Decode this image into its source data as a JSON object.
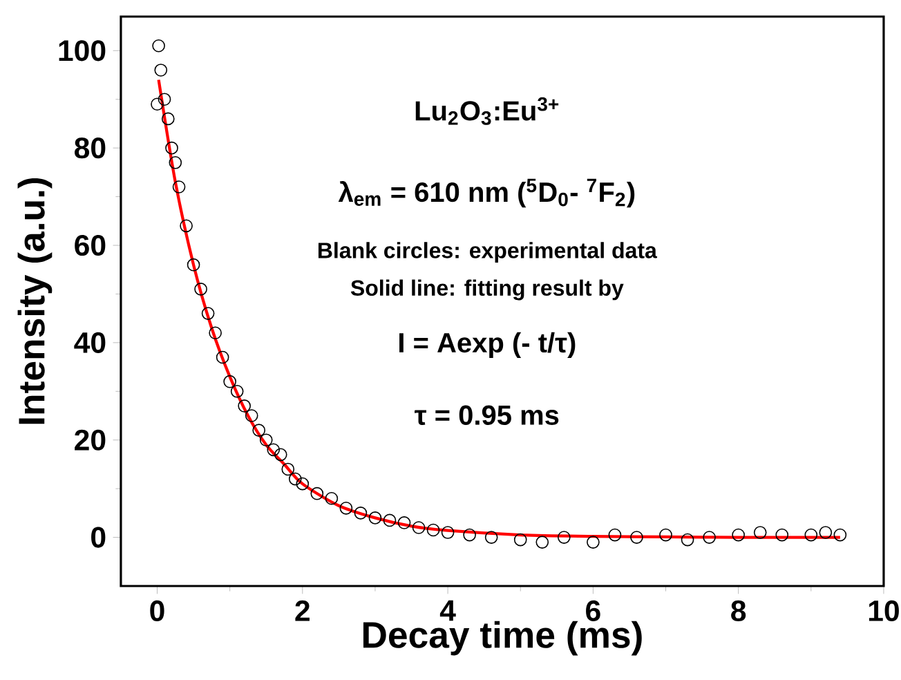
{
  "chart_data": {
    "type": "scatter",
    "xlabel": "Decay time (ms)",
    "ylabel": "Intensity (a.u.)",
    "xlim": [
      -0.5,
      10
    ],
    "ylim": [
      -10,
      107
    ],
    "xticks": [
      0,
      2,
      4,
      6,
      8,
      10
    ],
    "yticks": [
      0,
      20,
      40,
      60,
      80,
      100
    ],
    "annotations": [
      "Lu$_{2}$O$_{3}$:Eu$^{3+}$",
      "λ$_{em}$ = 610 nm ($^{5}$D$_{0}$- $^{7}$F$_{2}$)",
      "Blank circles: experimental data",
      "Solid line: fitting result by",
      "I = Aexp (- t/τ)",
      "τ = 0.95 ms"
    ],
    "series": [
      {
        "type": "scatter",
        "color": "#000000",
        "marker": "circle",
        "x": [
          0.0,
          0.02,
          0.05,
          0.1,
          0.15,
          0.2,
          0.25,
          0.3,
          0.4,
          0.5,
          0.6,
          0.7,
          0.8,
          0.9,
          1.0,
          1.1,
          1.2,
          1.3,
          1.4,
          1.5,
          1.6,
          1.7,
          1.8,
          1.9,
          2.0,
          2.2,
          2.4,
          2.6,
          2.8,
          3.0,
          3.2,
          3.4,
          3.6,
          3.8,
          4.0,
          4.3,
          4.6,
          5.0,
          5.3,
          5.6,
          6.0,
          6.3,
          6.6,
          7.0,
          7.3,
          7.6,
          8.0,
          8.3,
          8.6,
          9.0,
          9.2,
          9.4
        ],
        "values": [
          89,
          101,
          96,
          90,
          86,
          80,
          77,
          72,
          64,
          56,
          51,
          46,
          42,
          37,
          32,
          30,
          27,
          25,
          22,
          20,
          18,
          17,
          14,
          12,
          11,
          9,
          8,
          6,
          5,
          4,
          3.5,
          3,
          2,
          1.5,
          1,
          0.5,
          0,
          -0.5,
          -1,
          0,
          -1,
          0.5,
          0,
          0.5,
          -0.5,
          0,
          0.5,
          1,
          0.5,
          0.5,
          1,
          0.5
        ]
      },
      {
        "type": "line",
        "color": "#ff0000",
        "x": [
          0.02,
          0.25,
          0.5,
          0.75,
          1,
          1.25,
          1.5,
          1.75,
          2,
          2.5,
          3,
          3.5,
          4,
          5,
          6,
          7,
          8,
          9.4
        ],
        "values": [
          94,
          73,
          56,
          43,
          33,
          25,
          19,
          15,
          11,
          6.5,
          4,
          2.3,
          1.4,
          0.5,
          0.2,
          0.1,
          0,
          0
        ]
      }
    ]
  }
}
